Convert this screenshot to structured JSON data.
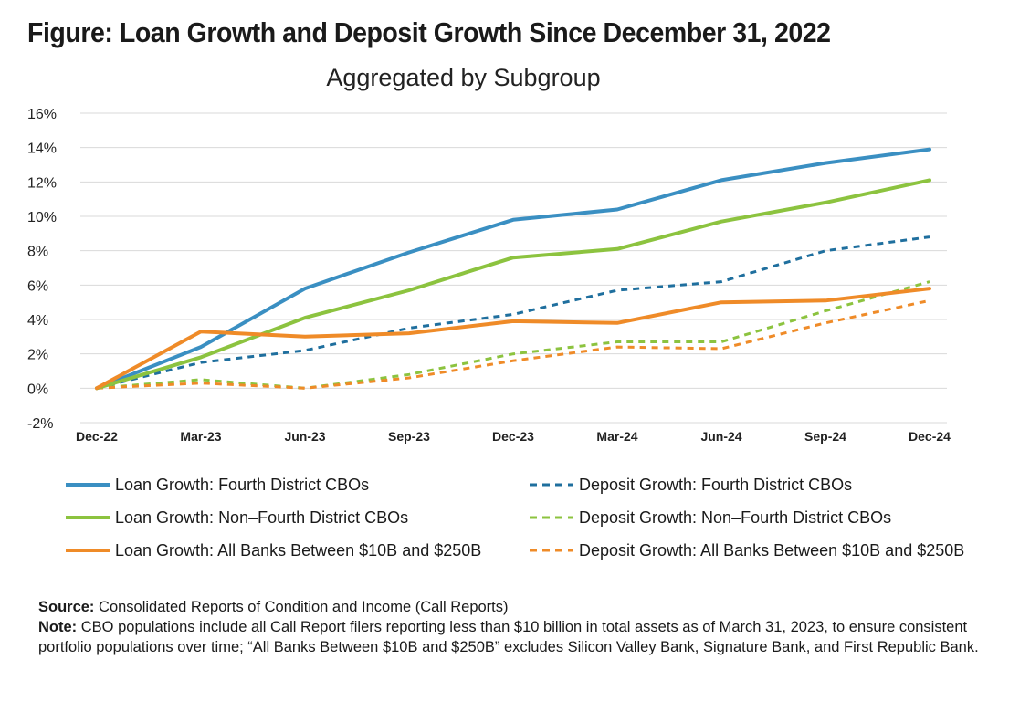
{
  "header": {
    "title": "Figure: Loan Growth and Deposit Growth Since December 31, 2022",
    "subtitle": "Aggregated by Subgroup"
  },
  "colors": {
    "fourth_district": "#3a8fc2",
    "non_fourth_district": "#8cc33f",
    "all_banks": "#ef8b28",
    "grid": "#d9d9d9"
  },
  "chart_data": {
    "type": "line",
    "title": "Figure: Loan Growth and Deposit Growth Since December 31, 2022",
    "subtitle": "Aggregated by Subgroup",
    "xlabel": "",
    "ylabel": "",
    "categories": [
      "Dec-22",
      "Mar-23",
      "Jun-23",
      "Sep-23",
      "Dec-23",
      "Mar-24",
      "Jun-24",
      "Sep-24",
      "Dec-24"
    ],
    "y_ticks": [
      "16%",
      "14%",
      "12%",
      "10%",
      "8%",
      "6%",
      "4%",
      "2%",
      "0%",
      "-2%"
    ],
    "ylim": [
      -2,
      16
    ],
    "grid": true,
    "legend_position": "bottom",
    "series": [
      {
        "name": "Loan Growth: Fourth District CBOs",
        "color": "#3a8fc2",
        "style": "solid",
        "values": [
          0,
          2.4,
          5.8,
          7.9,
          9.8,
          10.4,
          12.1,
          13.1,
          13.9
        ]
      },
      {
        "name": "Loan Growth: Non–Fourth District CBOs",
        "color": "#8cc33f",
        "style": "solid",
        "values": [
          0,
          1.8,
          4.1,
          5.7,
          7.6,
          8.1,
          9.7,
          10.8,
          12.1
        ]
      },
      {
        "name": "Loan Growth: All Banks Between $10B and $250B",
        "color": "#ef8b28",
        "style": "solid",
        "values": [
          0,
          3.3,
          3.0,
          3.2,
          3.9,
          3.8,
          5.0,
          5.1,
          5.8
        ]
      },
      {
        "name": "Deposit Growth: Fourth District CBOs",
        "color": "#1f6f9e",
        "style": "dashed",
        "values": [
          0,
          1.5,
          2.2,
          3.5,
          4.3,
          5.7,
          6.2,
          8.0,
          8.8
        ]
      },
      {
        "name": "Deposit Growth: Non–Fourth District CBOs",
        "color": "#8cc33f",
        "style": "dashed",
        "values": [
          0,
          0.5,
          0.0,
          0.8,
          2.0,
          2.7,
          2.7,
          4.5,
          6.2
        ]
      },
      {
        "name": "Deposit Growth: All Banks Between $10B and $250B",
        "color": "#ef8b28",
        "style": "dashed",
        "values": [
          0,
          0.3,
          0.0,
          0.6,
          1.6,
          2.4,
          2.3,
          3.8,
          5.1
        ]
      }
    ]
  },
  "legend": [
    {
      "label": "Loan Growth: Fourth District CBOs",
      "color": "#3a8fc2",
      "style": "solid"
    },
    {
      "label": "Deposit Growth: Fourth District CBOs",
      "color": "#1f6f9e",
      "style": "dashed"
    },
    {
      "label": "Loan Growth: Non–Fourth District CBOs",
      "color": "#8cc33f",
      "style": "solid"
    },
    {
      "label": "Deposit Growth: Non–Fourth District CBOs",
      "color": "#8cc33f",
      "style": "dashed"
    },
    {
      "label": "Loan Growth: All Banks Between $10B and $250B",
      "color": "#ef8b28",
      "style": "solid"
    },
    {
      "label": "Deposit Growth: All Banks Between $10B and $250B",
      "color": "#ef8b28",
      "style": "dashed"
    }
  ],
  "notes": {
    "source_label": "Source:",
    "source_text": " Consolidated Reports of Condition and Income (Call Reports)",
    "note_label": "Note:",
    "note_text": " CBO populations include all Call Report filers reporting less than $10 billion in total assets as of March 31, 2023, to ensure consistent portfolio populations over time; “All Banks Between $10B and $250B” excludes Silicon Valley Bank, Signature Bank, and First Republic Bank."
  }
}
